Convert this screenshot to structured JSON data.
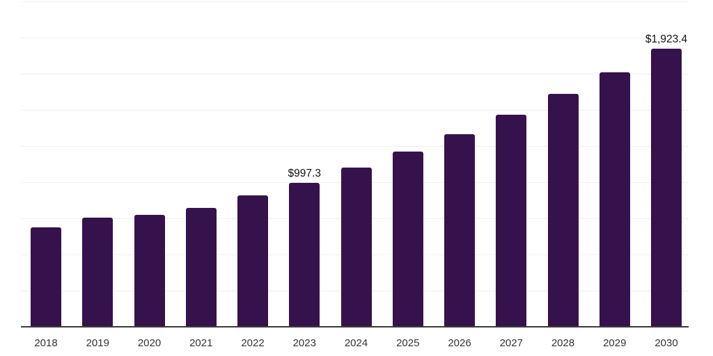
{
  "chart_data": {
    "type": "bar",
    "categories": [
      "2018",
      "2019",
      "2020",
      "2021",
      "2022",
      "2023",
      "2024",
      "2025",
      "2026",
      "2027",
      "2028",
      "2029",
      "2030"
    ],
    "values": [
      689,
      756,
      774,
      821,
      910,
      997.3,
      1101,
      1210,
      1333,
      1466,
      1609,
      1760,
      1923.4
    ],
    "data_labels": [
      "",
      "",
      "",
      "",
      "",
      "$997.3",
      "",
      "",
      "",
      "",
      "",
      "",
      "$1,923.4"
    ],
    "ylim": [
      0,
      2250
    ],
    "gridline_step": 250,
    "grid": true,
    "legend": "none",
    "bar_color": "#36124C",
    "axis_color": "#3b3b3b",
    "gridline_color": "#f0f0f0",
    "tick_label_color": "#333333",
    "data_label_color": "#101010"
  }
}
